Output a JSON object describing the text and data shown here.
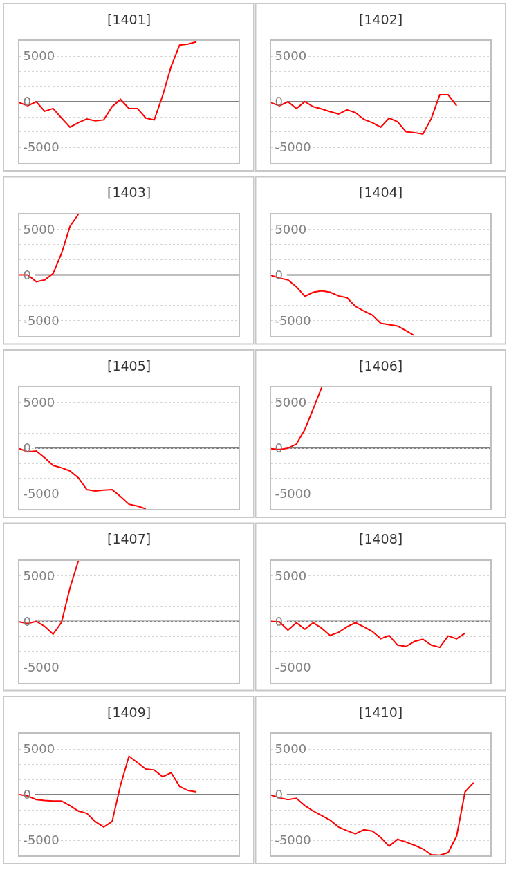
{
  "chart_data": [
    {
      "type": "line",
      "title": "[1401]",
      "categories": [
        null,
        null,
        null,
        null,
        null,
        null,
        null,
        null,
        null,
        null,
        null,
        null,
        null,
        null,
        null,
        null,
        null,
        null,
        null,
        null,
        null,
        null,
        null,
        null,
        null,
        null,
        null
      ],
      "series": [
        {
          "color": "#ff0000",
          "values": [
            -100,
            -450,
            0,
            -1050,
            -750,
            -1800,
            -2800,
            -2300,
            -1900,
            -2100,
            -2000,
            -550,
            250,
            -750,
            -750,
            -1800,
            -2000,
            700,
            3850,
            6200,
            6300,
            6550,
            null,
            null,
            null,
            null,
            null
          ]
        }
      ],
      "ylim": [
        -6667,
        6667
      ],
      "yticks": [
        5000,
        {
          "value": 3333,
          "label": null
        },
        {
          "value": 1667,
          "label": null
        },
        0,
        {
          "value": -1667,
          "label": null
        },
        {
          "value": -3333,
          "label": null
        },
        -5000
      ],
      "grid": "y",
      "tick_labels": "y",
      "ref_lines": [
        {
          "axis": "y",
          "value": 0,
          "color": "#808080"
        }
      ]
    },
    {
      "type": "line",
      "title": "[1402]",
      "categories": [
        null,
        null,
        null,
        null,
        null,
        null,
        null,
        null,
        null,
        null,
        null,
        null,
        null,
        null,
        null,
        null,
        null,
        null,
        null,
        null,
        null,
        null,
        null,
        null,
        null,
        null,
        null
      ],
      "series": [
        {
          "color": "#ff0000",
          "values": [
            -100,
            -450,
            0,
            -750,
            0,
            -550,
            -800,
            -1100,
            -1350,
            -900,
            -1200,
            -1950,
            -2300,
            -2800,
            -1800,
            -2200,
            -3300,
            -3400,
            -3550,
            -1850,
            750,
            750,
            -450,
            null,
            null,
            null,
            null
          ]
        }
      ],
      "ylim": [
        -6667,
        6667
      ],
      "yticks": [
        5000,
        {
          "value": 3333,
          "label": null
        },
        {
          "value": 1667,
          "label": null
        },
        0,
        {
          "value": -1667,
          "label": null
        },
        {
          "value": -3333,
          "label": null
        },
        -5000
      ],
      "grid": "y",
      "tick_labels": "y",
      "ref_lines": [
        {
          "axis": "y",
          "value": 0,
          "color": "#808080"
        }
      ]
    },
    {
      "type": "line",
      "title": "[1403]",
      "categories": [
        null,
        null,
        null,
        null,
        null,
        null,
        null,
        null,
        null,
        null,
        null,
        null,
        null,
        null,
        null,
        null,
        null,
        null,
        null,
        null,
        null,
        null,
        null,
        null,
        null,
        null,
        null
      ],
      "series": [
        {
          "color": "#ff0000",
          "values": [
            0,
            0,
            -750,
            -550,
            150,
            2350,
            5300,
            6650,
            null,
            null,
            null,
            null,
            null,
            null,
            null,
            null,
            null,
            null,
            null,
            null,
            null,
            null,
            null,
            null,
            null,
            null,
            null
          ]
        }
      ],
      "ylim": [
        -6667,
        6667
      ],
      "yticks": [
        5000,
        {
          "value": 3333,
          "label": null
        },
        {
          "value": 1667,
          "label": null
        },
        0,
        {
          "value": -1667,
          "label": null
        },
        {
          "value": -3333,
          "label": null
        },
        -5000
      ],
      "grid": "y",
      "tick_labels": "y",
      "ref_lines": [
        {
          "axis": "y",
          "value": 0,
          "color": "#808080"
        }
      ]
    },
    {
      "type": "line",
      "title": "[1404]",
      "categories": [
        null,
        null,
        null,
        null,
        null,
        null,
        null,
        null,
        null,
        null,
        null,
        null,
        null,
        null,
        null,
        null,
        null,
        null,
        null,
        null,
        null,
        null,
        null,
        null,
        null,
        null,
        null
      ],
      "series": [
        {
          "color": "#ff0000",
          "values": [
            -50,
            -350,
            -550,
            -1300,
            -2350,
            -1900,
            -1750,
            -1900,
            -2300,
            -2500,
            -3450,
            -3950,
            -4400,
            -5300,
            -5450,
            -5600,
            -6100,
            -6650,
            null,
            null,
            null,
            null,
            null,
            null,
            null,
            null,
            null
          ]
        }
      ],
      "ylim": [
        -6667,
        6667
      ],
      "yticks": [
        5000,
        {
          "value": 3333,
          "label": null
        },
        {
          "value": 1667,
          "label": null
        },
        0,
        {
          "value": -1667,
          "label": null
        },
        {
          "value": -3333,
          "label": null
        },
        -5000
      ],
      "grid": "y",
      "tick_labels": "y",
      "ref_lines": [
        {
          "axis": "y",
          "value": 0,
          "color": "#808080"
        }
      ]
    },
    {
      "type": "line",
      "title": "[1405]",
      "categories": [
        null,
        null,
        null,
        null,
        null,
        null,
        null,
        null,
        null,
        null,
        null,
        null,
        null,
        null,
        null,
        null,
        null,
        null,
        null,
        null,
        null,
        null,
        null,
        null,
        null,
        null,
        null
      ],
      "series": [
        {
          "color": "#ff0000",
          "values": [
            -50,
            -400,
            -300,
            -1050,
            -1900,
            -2150,
            -2500,
            -3250,
            -4550,
            -4700,
            -4600,
            -4550,
            -5300,
            -6150,
            -6350,
            -6650,
            null,
            null,
            null,
            null,
            null,
            null,
            null,
            null,
            null,
            null,
            null
          ]
        }
      ],
      "ylim": [
        -6667,
        6667
      ],
      "yticks": [
        5000,
        {
          "value": 3333,
          "label": null
        },
        {
          "value": 1667,
          "label": null
        },
        0,
        {
          "value": -1667,
          "label": null
        },
        {
          "value": -3333,
          "label": null
        },
        -5000
      ],
      "grid": "y",
      "tick_labels": "y",
      "ref_lines": [
        {
          "axis": "y",
          "value": 0,
          "color": "#808080"
        }
      ]
    },
    {
      "type": "line",
      "title": "[1406]",
      "categories": [
        null,
        null,
        null,
        null,
        null,
        null,
        null,
        null,
        null,
        null,
        null,
        null,
        null,
        null,
        null,
        null,
        null,
        null,
        null,
        null,
        null,
        null,
        null,
        null,
        null,
        null,
        null
      ],
      "series": [
        {
          "color": "#ff0000",
          "values": [
            -50,
            -150,
            0,
            450,
            2050,
            4300,
            6650,
            null,
            null,
            null,
            null,
            null,
            null,
            null,
            null,
            null,
            null,
            null,
            null,
            null,
            null,
            null,
            null,
            null,
            null,
            null,
            null
          ]
        }
      ],
      "ylim": [
        -6667,
        6667
      ],
      "yticks": [
        5000,
        {
          "value": 3333,
          "label": null
        },
        {
          "value": 1667,
          "label": null
        },
        0,
        {
          "value": -1667,
          "label": null
        },
        {
          "value": -3333,
          "label": null
        },
        -5000
      ],
      "grid": "y",
      "tick_labels": "y",
      "ref_lines": [
        {
          "axis": "y",
          "value": 0,
          "color": "#808080"
        }
      ]
    },
    {
      "type": "line",
      "title": "[1407]",
      "categories": [
        null,
        null,
        null,
        null,
        null,
        null,
        null,
        null,
        null,
        null,
        null,
        null,
        null,
        null,
        null,
        null,
        null,
        null,
        null,
        null,
        null,
        null,
        null,
        null,
        null,
        null,
        null
      ],
      "series": [
        {
          "color": "#ff0000",
          "values": [
            -50,
            -250,
            0,
            -550,
            -1400,
            -100,
            3650,
            6650,
            null,
            null,
            null,
            null,
            null,
            null,
            null,
            null,
            null,
            null,
            null,
            null,
            null,
            null,
            null,
            null,
            null,
            null,
            null
          ]
        }
      ],
      "ylim": [
        -6667,
        6667
      ],
      "yticks": [
        5000,
        {
          "value": 3333,
          "label": null
        },
        {
          "value": 1667,
          "label": null
        },
        0,
        {
          "value": -1667,
          "label": null
        },
        {
          "value": -3333,
          "label": null
        },
        -5000
      ],
      "grid": "y",
      "tick_labels": "y",
      "ref_lines": [
        {
          "axis": "y",
          "value": 0,
          "color": "#808080"
        }
      ]
    },
    {
      "type": "line",
      "title": "[1408]",
      "categories": [
        null,
        null,
        null,
        null,
        null,
        null,
        null,
        null,
        null,
        null,
        null,
        null,
        null,
        null,
        null,
        null,
        null,
        null,
        null,
        null,
        null,
        null,
        null,
        null,
        null,
        null,
        null
      ],
      "series": [
        {
          "color": "#ff0000",
          "values": [
            0,
            -50,
            -950,
            -150,
            -850,
            -150,
            -750,
            -1550,
            -1200,
            -600,
            -150,
            -600,
            -1100,
            -1900,
            -1550,
            -2600,
            -2750,
            -2200,
            -1950,
            -2600,
            -2850,
            -1600,
            -1900,
            -1300,
            null,
            null,
            null
          ]
        }
      ],
      "ylim": [
        -6667,
        6667
      ],
      "yticks": [
        5000,
        {
          "value": 3333,
          "label": null
        },
        {
          "value": 1667,
          "label": null
        },
        0,
        {
          "value": -1667,
          "label": null
        },
        {
          "value": -3333,
          "label": null
        },
        -5000
      ],
      "grid": "y",
      "tick_labels": "y",
      "ref_lines": [
        {
          "axis": "y",
          "value": 0,
          "color": "#808080"
        }
      ]
    },
    {
      "type": "line",
      "title": "[1409]",
      "categories": [
        null,
        null,
        null,
        null,
        null,
        null,
        null,
        null,
        null,
        null,
        null,
        null,
        null,
        null,
        null,
        null,
        null,
        null,
        null,
        null,
        null,
        null,
        null,
        null,
        null,
        null,
        null
      ],
      "series": [
        {
          "color": "#ff0000",
          "values": [
            0,
            -150,
            -550,
            -650,
            -700,
            -700,
            -1200,
            -1800,
            -2050,
            -2950,
            -3550,
            -2950,
            1050,
            4200,
            3500,
            2800,
            2700,
            1950,
            2400,
            900,
            450,
            300,
            null,
            null,
            null,
            null,
            null
          ]
        }
      ],
      "ylim": [
        -6667,
        6667
      ],
      "yticks": [
        5000,
        {
          "value": 3333,
          "label": null
        },
        {
          "value": 1667,
          "label": null
        },
        0,
        {
          "value": -1667,
          "label": null
        },
        {
          "value": -3333,
          "label": null
        },
        -5000
      ],
      "grid": "y",
      "tick_labels": "y",
      "ref_lines": [
        {
          "axis": "y",
          "value": 0,
          "color": "#808080"
        }
      ]
    },
    {
      "type": "line",
      "title": "[1410]",
      "categories": [
        null,
        null,
        null,
        null,
        null,
        null,
        null,
        null,
        null,
        null,
        null,
        null,
        null,
        null,
        null,
        null,
        null,
        null,
        null,
        null,
        null,
        null,
        null,
        null,
        null,
        null,
        null
      ],
      "series": [
        {
          "color": "#ff0000",
          "values": [
            -50,
            -350,
            -550,
            -400,
            -1200,
            -1800,
            -2300,
            -2800,
            -3550,
            -3950,
            -4300,
            -3850,
            -4000,
            -4700,
            -5650,
            -4900,
            -5200,
            -5550,
            -5950,
            -6600,
            -6650,
            -6350,
            -4550,
            300,
            1300,
            null,
            null
          ]
        }
      ],
      "ylim": [
        -6667,
        6667
      ],
      "yticks": [
        5000,
        {
          "value": 3333,
          "label": null
        },
        {
          "value": 1667,
          "label": null
        },
        0,
        {
          "value": -1667,
          "label": null
        },
        {
          "value": -3333,
          "label": null
        },
        -5000
      ],
      "grid": "y",
      "tick_labels": "y",
      "ref_lines": [
        {
          "axis": "y",
          "value": 0,
          "color": "#808080"
        }
      ]
    }
  ]
}
